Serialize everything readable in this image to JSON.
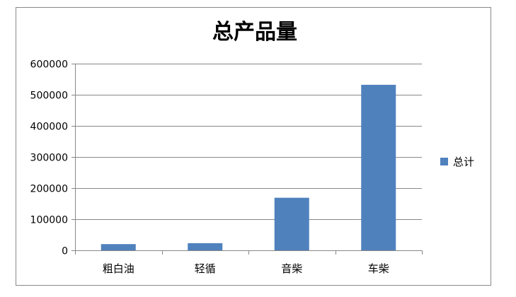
{
  "chart_data": {
    "type": "bar",
    "title": "总产品量",
    "categories": [
      "粗白油",
      "轻循",
      "音柴",
      "车柴"
    ],
    "series": [
      {
        "name": "总计",
        "values": [
          20000,
          23000,
          169000,
          532000
        ],
        "color": "#4f81bd"
      }
    ],
    "ylim": [
      0,
      600000
    ],
    "yticks": [
      "0",
      "100000",
      "200000",
      "300000",
      "400000",
      "500000",
      "600000"
    ],
    "grid": true,
    "legend": "right",
    "xlabel": "",
    "ylabel": ""
  }
}
